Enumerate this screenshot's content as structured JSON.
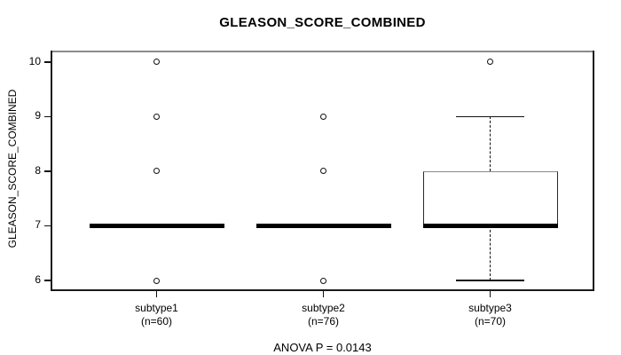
{
  "chart_data": {
    "type": "boxplot",
    "title": "GLEASON_SCORE_COMBINED",
    "ylabel": "GLEASON_SCORE_COMBINED",
    "annotation": "ANOVA P = 0.0143",
    "anova_p": 0.0143,
    "yticks": [
      10,
      9,
      8,
      7,
      6
    ],
    "ylim": [
      5.805,
      10.211
    ],
    "grid": false,
    "legend": false,
    "line_color": "#111111",
    "categories": [
      {
        "label": "subtype1",
        "sublabel": "(n=60)",
        "n": 60,
        "median": 7,
        "q1": 7,
        "q3": 7,
        "whisker_low": 7,
        "whisker_high": 7,
        "outliers": [
          10,
          9,
          8,
          6
        ]
      },
      {
        "label": "subtype2",
        "sublabel": "(n=76)",
        "n": 76,
        "median": 7,
        "q1": 7,
        "q3": 7,
        "whisker_low": 7,
        "whisker_high": 7,
        "outliers": [
          9,
          8,
          6
        ]
      },
      {
        "label": "subtype3",
        "sublabel": "(n=70)",
        "n": 70,
        "median": 7,
        "q1": 7,
        "q3": 8,
        "whisker_low": 6,
        "whisker_high": 9,
        "outliers": [
          10
        ]
      }
    ]
  }
}
